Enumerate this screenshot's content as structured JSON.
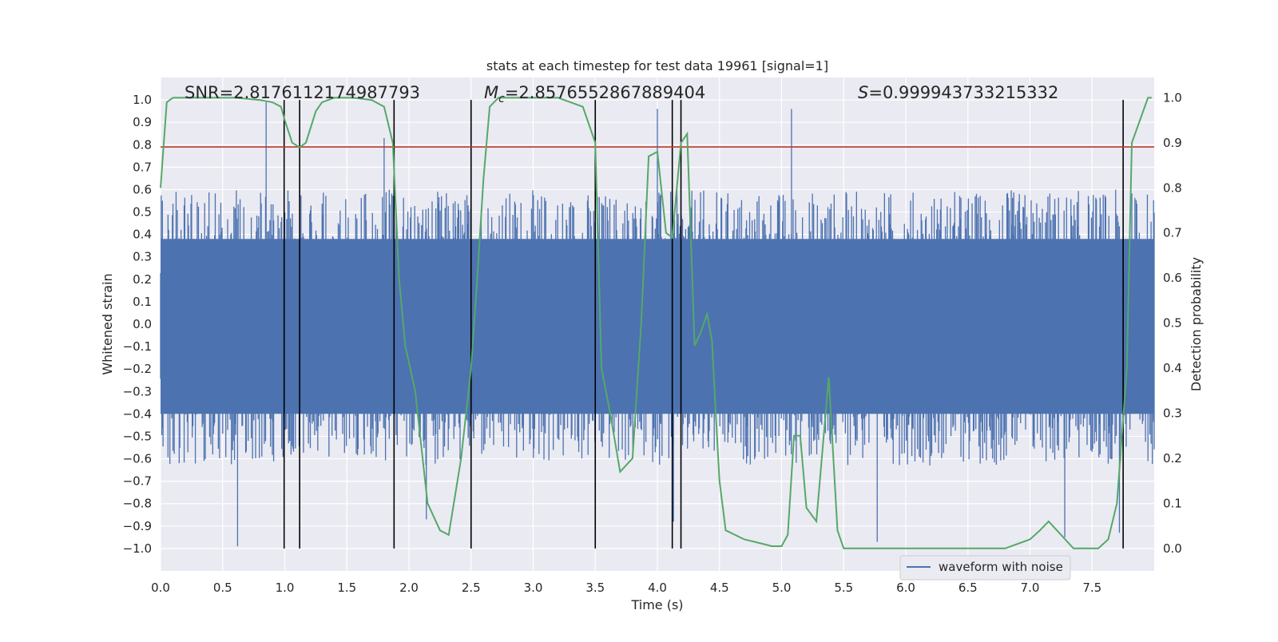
{
  "chart_data": {
    "type": "line",
    "title": "stats at each timestep for test data 19961 [signal=1]",
    "xlabel": "Time (s)",
    "ylabel": "Whitened strain",
    "y2label": "Detection probability",
    "xlim": [
      0.0,
      8.0
    ],
    "ylim": [
      -1.1,
      1.1
    ],
    "y2lim": [
      -0.05,
      1.045
    ],
    "xticks": [
      "0.0",
      "0.5",
      "1.0",
      "1.5",
      "2.0",
      "2.5",
      "3.0",
      "3.5",
      "4.0",
      "4.5",
      "5.0",
      "5.5",
      "6.0",
      "6.5",
      "7.0",
      "7.5"
    ],
    "yticks": [
      "1.0",
      "0.9",
      "0.8",
      "0.7",
      "0.6",
      "0.5",
      "0.4",
      "0.3",
      "0.2",
      "0.1",
      "0.0",
      "−0.1",
      "−0.2",
      "−0.3",
      "−0.4",
      "−0.5",
      "−0.6",
      "−0.7",
      "−0.8",
      "−0.9",
      "−1.0"
    ],
    "y2ticks": [
      "1.0",
      "0.9",
      "0.8",
      "0.7",
      "0.6",
      "0.5",
      "0.4",
      "0.3",
      "0.2",
      "0.1",
      "0.0"
    ],
    "grid": true,
    "legend": {
      "placement": "lower-right",
      "entries": [
        "waveform with noise"
      ]
    },
    "annotations": {
      "snr": "SNR=2.8176112174987793",
      "mc_symbol": "M",
      "mc_sub": "c",
      "mc_value": "=2.8576552867889404",
      "s_symbol": "S",
      "s_value": "=0.999943733215332"
    },
    "threshold_line": {
      "y": 0.79,
      "color": "#c0392b"
    },
    "vertical_lines_x": [
      0.995,
      1.12,
      1.88,
      2.5,
      3.5,
      4.12,
      4.19,
      7.75
    ],
    "series": [
      {
        "name": "waveform with noise",
        "color": "#4c72b0",
        "x_range": [
          0.0,
          8.0
        ],
        "typical_abs_peak": 0.6,
        "peaks": [
          {
            "x": 0.85,
            "y": 0.99
          },
          {
            "x": 0.62,
            "y": -0.99
          },
          {
            "x": 1.8,
            "y": 0.83
          },
          {
            "x": 2.14,
            "y": -0.87
          },
          {
            "x": 4.0,
            "y": 0.96
          },
          {
            "x": 4.13,
            "y": -0.88
          },
          {
            "x": 5.08,
            "y": 0.96
          },
          {
            "x": 5.77,
            "y": -0.97
          },
          {
            "x": 7.28,
            "y": -0.95
          },
          {
            "x": 7.72,
            "y": -0.93
          }
        ]
      },
      {
        "name": "Detection probability",
        "color": "#55a868",
        "axis": "right",
        "x": [
          0.0,
          0.05,
          0.1,
          0.2,
          0.4,
          0.6,
          0.8,
          0.9,
          0.97,
          1.0,
          1.06,
          1.12,
          1.17,
          1.25,
          1.3,
          1.4,
          1.55,
          1.7,
          1.8,
          1.87,
          1.92,
          1.97,
          2.05,
          2.15,
          2.25,
          2.32,
          2.42,
          2.5,
          2.55,
          2.6,
          2.65,
          2.72,
          2.8,
          3.0,
          3.2,
          3.4,
          3.5,
          3.55,
          3.62,
          3.7,
          3.8,
          3.87,
          3.93,
          4.0,
          4.07,
          4.12,
          4.19,
          4.24,
          4.3,
          4.35,
          4.4,
          4.44,
          4.47,
          4.5,
          4.55,
          4.7,
          4.85,
          4.92,
          5.0,
          5.05,
          5.1,
          5.15,
          5.2,
          5.28,
          5.38,
          5.45,
          5.5,
          6.0,
          6.5,
          6.8,
          7.0,
          7.08,
          7.15,
          7.25,
          7.35,
          7.55,
          7.63,
          7.7,
          7.78,
          7.82,
          7.95,
          7.98
        ],
        "y": [
          0.8,
          0.99,
          1.0,
          1.0,
          1.0,
          1.0,
          0.995,
          0.99,
          0.98,
          0.95,
          0.9,
          0.89,
          0.9,
          0.97,
          0.99,
          1.0,
          1.0,
          0.995,
          0.98,
          0.9,
          0.6,
          0.45,
          0.35,
          0.1,
          0.04,
          0.03,
          0.2,
          0.4,
          0.6,
          0.82,
          0.98,
          1.0,
          1.0,
          1.0,
          1.0,
          0.98,
          0.9,
          0.4,
          0.3,
          0.17,
          0.2,
          0.5,
          0.87,
          0.88,
          0.7,
          0.69,
          0.9,
          0.92,
          0.45,
          0.48,
          0.52,
          0.46,
          0.3,
          0.15,
          0.04,
          0.02,
          0.01,
          0.005,
          0.005,
          0.03,
          0.25,
          0.25,
          0.09,
          0.06,
          0.38,
          0.04,
          0.0,
          0.0,
          0.0,
          0.0,
          0.02,
          0.04,
          0.06,
          0.03,
          0.0,
          0.0,
          0.02,
          0.1,
          0.4,
          0.9,
          1.0,
          1.0
        ]
      }
    ]
  }
}
